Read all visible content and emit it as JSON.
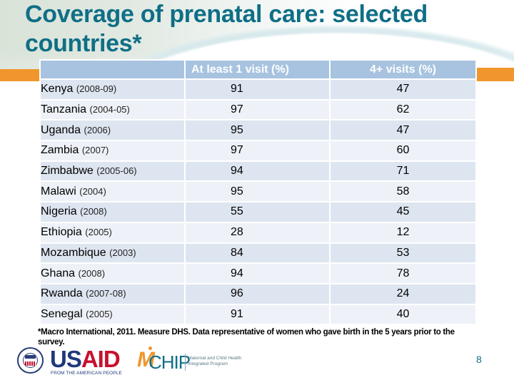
{
  "slide": {
    "title": "Coverage of prenatal care: selected countries*",
    "page_number": "8",
    "colors": {
      "title": "#0f6f86",
      "accent_orange": "#f0962c",
      "header_bg": "#a7c3e0",
      "row_odd": "#dde5f0",
      "row_even": "#eef2f8"
    }
  },
  "table": {
    "headers": [
      "",
      "At least 1 visit (%)",
      "4+ visits (%)"
    ],
    "rows": [
      {
        "country": "Kenya",
        "years": "(2008-09)",
        "at_least_1": "91",
        "four_plus": "47"
      },
      {
        "country": "Tanzania",
        "years": "(2004-05)",
        "at_least_1": "97",
        "four_plus": "62"
      },
      {
        "country": "Uganda",
        "years": "(2006)",
        "at_least_1": "95",
        "four_plus": "47"
      },
      {
        "country": "Zambia",
        "years": "(2007)",
        "at_least_1": "97",
        "four_plus": "60"
      },
      {
        "country": "Zimbabwe",
        "years": "(2005-06)",
        "at_least_1": "94",
        "four_plus": "71"
      },
      {
        "country": "Malawi",
        "years": "(2004)",
        "at_least_1": "95",
        "four_plus": "58"
      },
      {
        "country": "Nigeria",
        "years": "(2008)",
        "at_least_1": "55",
        "four_plus": "45"
      },
      {
        "country": "Ethiopia",
        "years": "(2005)",
        "at_least_1": "28",
        "four_plus": "12"
      },
      {
        "country": "Mozambique",
        "years": "(2003)",
        "at_least_1": "84",
        "four_plus": "53"
      },
      {
        "country": "Ghana",
        "years": "(2008)",
        "at_least_1": "94",
        "four_plus": "78"
      },
      {
        "country": "Rwanda",
        "years": "(2007-08)",
        "at_least_1": "96",
        "four_plus": "24"
      },
      {
        "country": "Senegal",
        "years": "(2005)",
        "at_least_1": "91",
        "four_plus": "40"
      }
    ]
  },
  "footnote": "*Macro International, 2011. Measure DHS. Data representative of women who gave birth in the 5 years prior to the survey.",
  "logos": {
    "usaid": {
      "us": "US",
      "aid": "AID",
      "tagline": "FROM THE AMERICAN PEOPLE",
      "seal_label": "USAID"
    },
    "mchip": {
      "mark": "M",
      "name": "CHIP",
      "line1": "Maternal and Child Health",
      "line2": "Integrated Program"
    }
  }
}
